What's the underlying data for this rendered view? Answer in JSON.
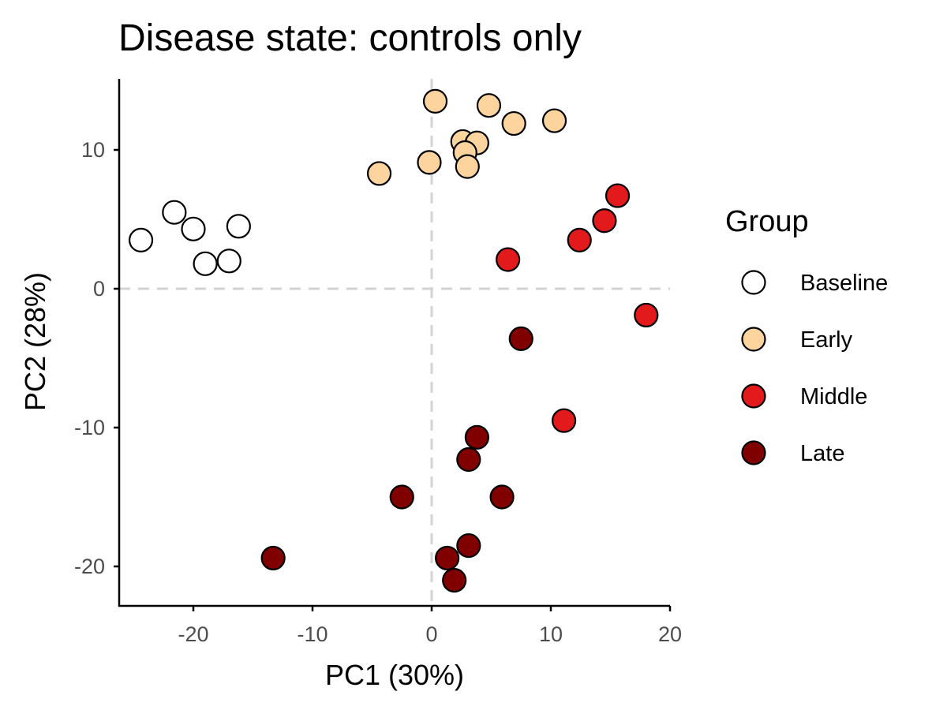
{
  "chart_data": {
    "type": "scatter",
    "title": "Disease state: controls only",
    "xlabel": "PC1 (30%)",
    "ylabel": "PC2 (28%)",
    "xlim": [
      -26.5,
      20
    ],
    "ylim": [
      -22.8,
      15
    ],
    "x_ticks": [
      -20,
      -10,
      0,
      10,
      20
    ],
    "y_ticks": [
      -20,
      -10,
      0,
      10
    ],
    "x_tick_labels": [
      "-20",
      "-10",
      "0",
      "10",
      "20"
    ],
    "y_tick_labels": [
      "-20",
      "-10",
      "0",
      "10"
    ],
    "reference_lines": {
      "x": 0,
      "y": 0,
      "style": "dashed",
      "color": "#d3d3d3"
    },
    "grid": false,
    "legend": {
      "title": "Group",
      "position": "right"
    },
    "series": [
      {
        "name": "Baseline",
        "color": "#ffffff",
        "points": [
          [
            -24.4,
            3.5
          ],
          [
            -21.6,
            5.5
          ],
          [
            -20.0,
            4.3
          ],
          [
            -16.2,
            4.5
          ],
          [
            -19.0,
            1.8
          ],
          [
            -17.0,
            2.0
          ]
        ]
      },
      {
        "name": "Early",
        "color": "#fdd49e",
        "points": [
          [
            0.3,
            13.5
          ],
          [
            4.8,
            13.2
          ],
          [
            6.9,
            11.9
          ],
          [
            10.3,
            12.1
          ],
          [
            2.6,
            10.6
          ],
          [
            3.8,
            10.5
          ],
          [
            2.8,
            9.8
          ],
          [
            3.0,
            8.8
          ],
          [
            -0.2,
            9.1
          ],
          [
            -4.4,
            8.3
          ]
        ]
      },
      {
        "name": "Middle",
        "color": "#e31a1c",
        "points": [
          [
            15.6,
            6.7
          ],
          [
            14.5,
            4.9
          ],
          [
            12.4,
            3.5
          ],
          [
            6.4,
            2.1
          ],
          [
            18.0,
            -1.9
          ],
          [
            11.1,
            -9.5
          ]
        ]
      },
      {
        "name": "Late",
        "color": "#800000",
        "points": [
          [
            7.5,
            -3.6
          ],
          [
            3.8,
            -10.7
          ],
          [
            3.1,
            -12.3
          ],
          [
            -2.5,
            -15.0
          ],
          [
            5.9,
            -15.0
          ],
          [
            3.1,
            -18.5
          ],
          [
            1.3,
            -19.4
          ],
          [
            -13.3,
            -19.4
          ],
          [
            1.9,
            -21.0
          ]
        ]
      }
    ]
  }
}
